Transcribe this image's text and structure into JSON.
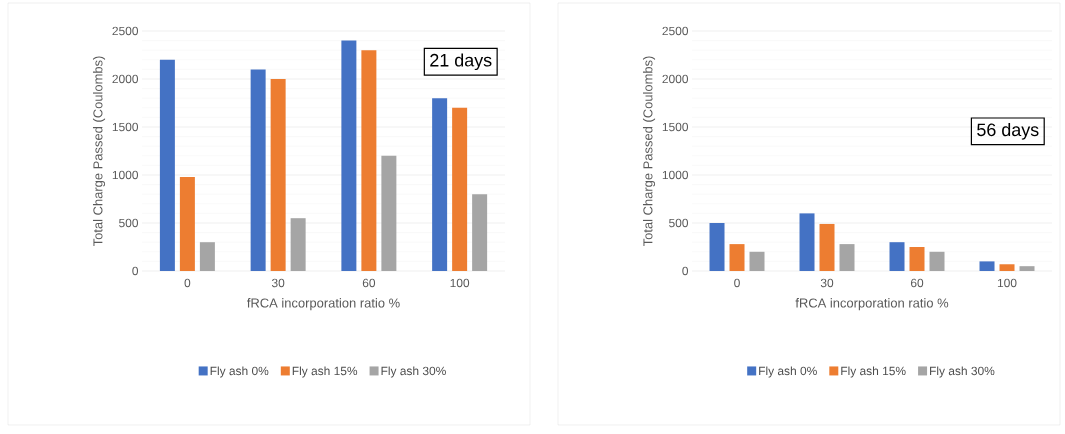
{
  "chart_data": [
    {
      "type": "bar",
      "categories": [
        "0",
        "30",
        "60",
        "100"
      ],
      "xlabel": "fRCA incorporation ratio %",
      "ylabel": "Total Charge Passed (Coulombs)",
      "ylim": [
        0,
        2500
      ],
      "yticks": [
        0,
        500,
        1000,
        1500,
        2000,
        2500
      ],
      "grid": "y",
      "legend": "bottom",
      "annotations": [
        "21 days"
      ],
      "series": [
        {
          "name": "Fly ash 0%",
          "color": "#4472c4",
          "values": [
            2200,
            2100,
            2400,
            1800
          ]
        },
        {
          "name": "Fly ash 15%",
          "color": "#ed7d31",
          "values": [
            980,
            2000,
            2300,
            1700
          ]
        },
        {
          "name": "Fly ash 30%",
          "color": "#a5a5a5",
          "values": [
            300,
            550,
            1200,
            800
          ]
        }
      ]
    },
    {
      "type": "bar",
      "categories": [
        "0",
        "30",
        "60",
        "100"
      ],
      "xlabel": "fRCA incorporation ratio %",
      "ylabel": "Total Charge Passed (Coulombs)",
      "ylim": [
        0,
        2500
      ],
      "yticks": [
        0,
        500,
        1000,
        1500,
        2000,
        2500
      ],
      "grid": "y",
      "legend": "bottom",
      "annotations": [
        "56 days"
      ],
      "series": [
        {
          "name": "Fly ash 0%",
          "color": "#4472c4",
          "values": [
            500,
            600,
            300,
            100
          ]
        },
        {
          "name": "Fly ash 15%",
          "color": "#ed7d31",
          "values": [
            280,
            490,
            250,
            70
          ]
        },
        {
          "name": "Fly ash 30%",
          "color": "#a5a5a5",
          "values": [
            200,
            280,
            200,
            50
          ]
        }
      ]
    }
  ]
}
